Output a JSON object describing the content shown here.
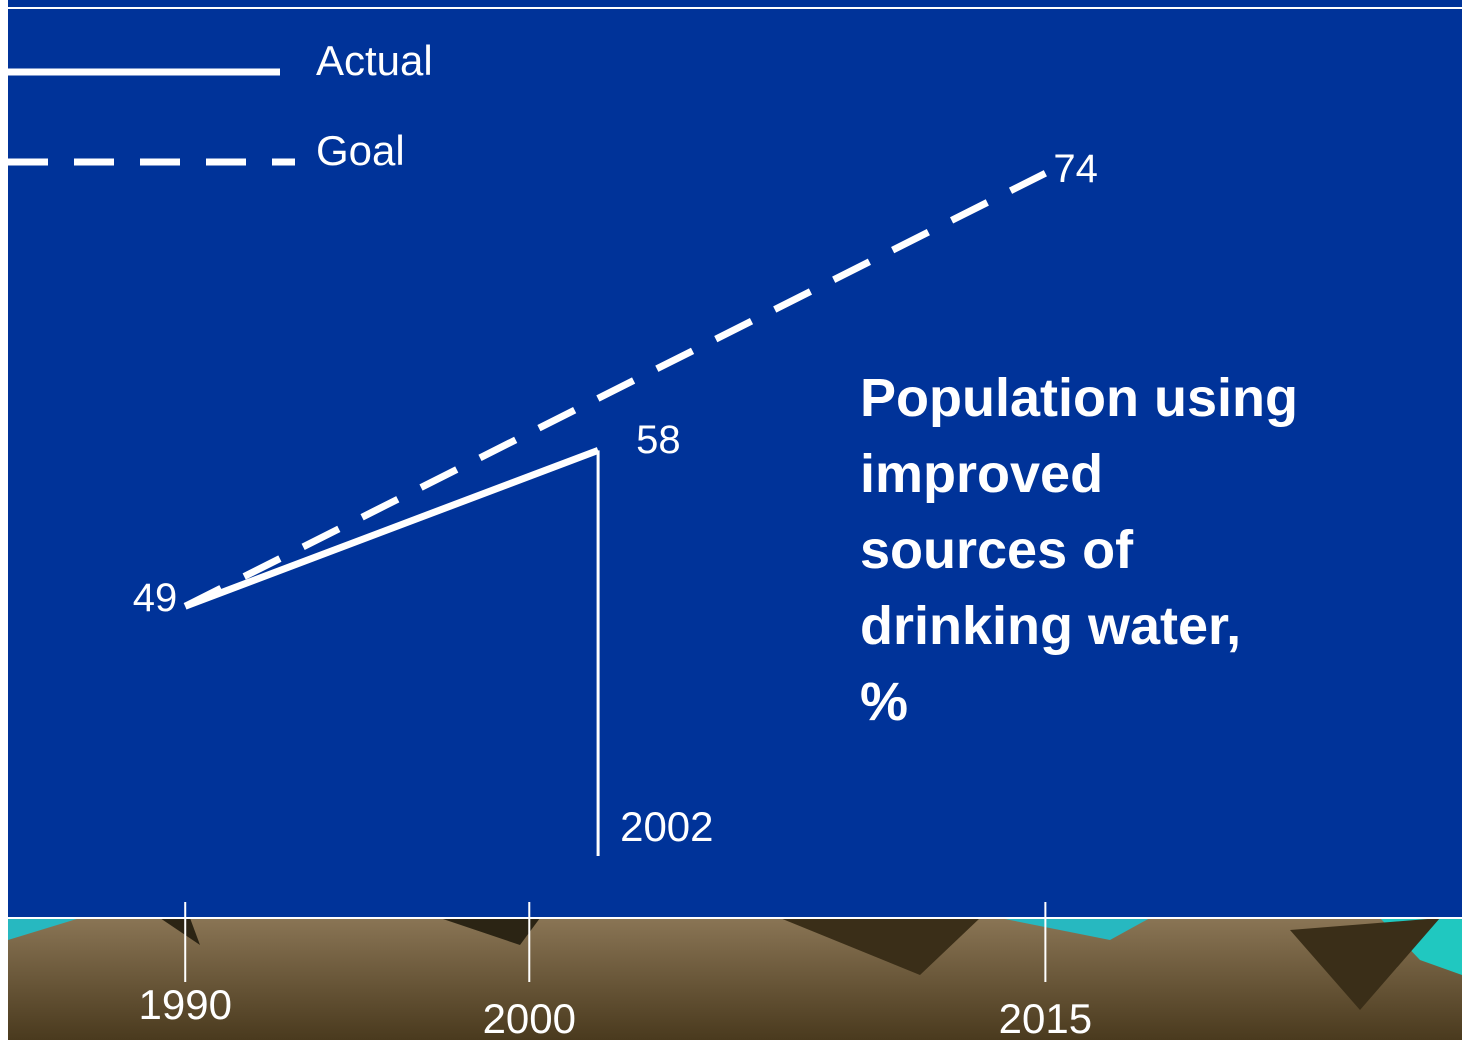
{
  "chart_data": {
    "type": "line",
    "title": "Population using\nimproved\nsources of\ndrinking water,\n%",
    "series": [
      {
        "name": "Actual",
        "color": "#ffffff",
        "dash": false,
        "x": [
          1990,
          2002
        ],
        "values": [
          49,
          58
        ]
      },
      {
        "name": "Goal",
        "color": "#ffffff",
        "dash": true,
        "x": [
          1990,
          2015
        ],
        "values": [
          49,
          74
        ]
      }
    ],
    "xlim": [
      1987,
      2019
    ],
    "xticks": [
      1990,
      2000,
      2015
    ],
    "ylim": [
      31,
      84
    ],
    "legend": "top-left"
  }
}
